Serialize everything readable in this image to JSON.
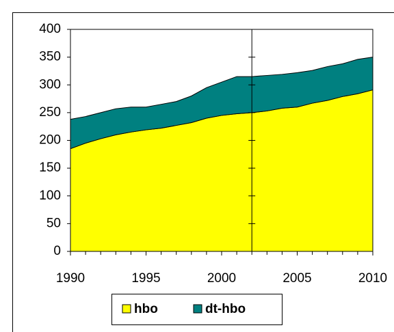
{
  "chart_data": {
    "type": "stacked_area",
    "x": [
      1990,
      1991,
      1992,
      1993,
      1994,
      1995,
      1996,
      1997,
      1998,
      1999,
      2000,
      2001,
      2002,
      2003,
      2004,
      2005,
      2006,
      2007,
      2008,
      2009,
      2010
    ],
    "series": [
      {
        "name": "hbo",
        "color": "#ffff00",
        "values": [
          185,
          195,
          203,
          210,
          215,
          219,
          222,
          227,
          232,
          240,
          245,
          248,
          250,
          253,
          258,
          260,
          267,
          272,
          279,
          284,
          291
        ]
      },
      {
        "name": "dt-hbo",
        "color": "#008080",
        "values": [
          53,
          48,
          47,
          47,
          45,
          41,
          43,
          43,
          48,
          55,
          60,
          67,
          65,
          64,
          61,
          62,
          59,
          61,
          59,
          62,
          59
        ]
      }
    ],
    "xlim": [
      1990,
      2010
    ],
    "xticks": [
      1990,
      1995,
      2000,
      2005,
      2010
    ],
    "ylim": [
      0,
      400
    ],
    "yticks": [
      0,
      50,
      100,
      150,
      200,
      250,
      300,
      350,
      400
    ],
    "vline_x": 2002,
    "legend": "bottom"
  }
}
